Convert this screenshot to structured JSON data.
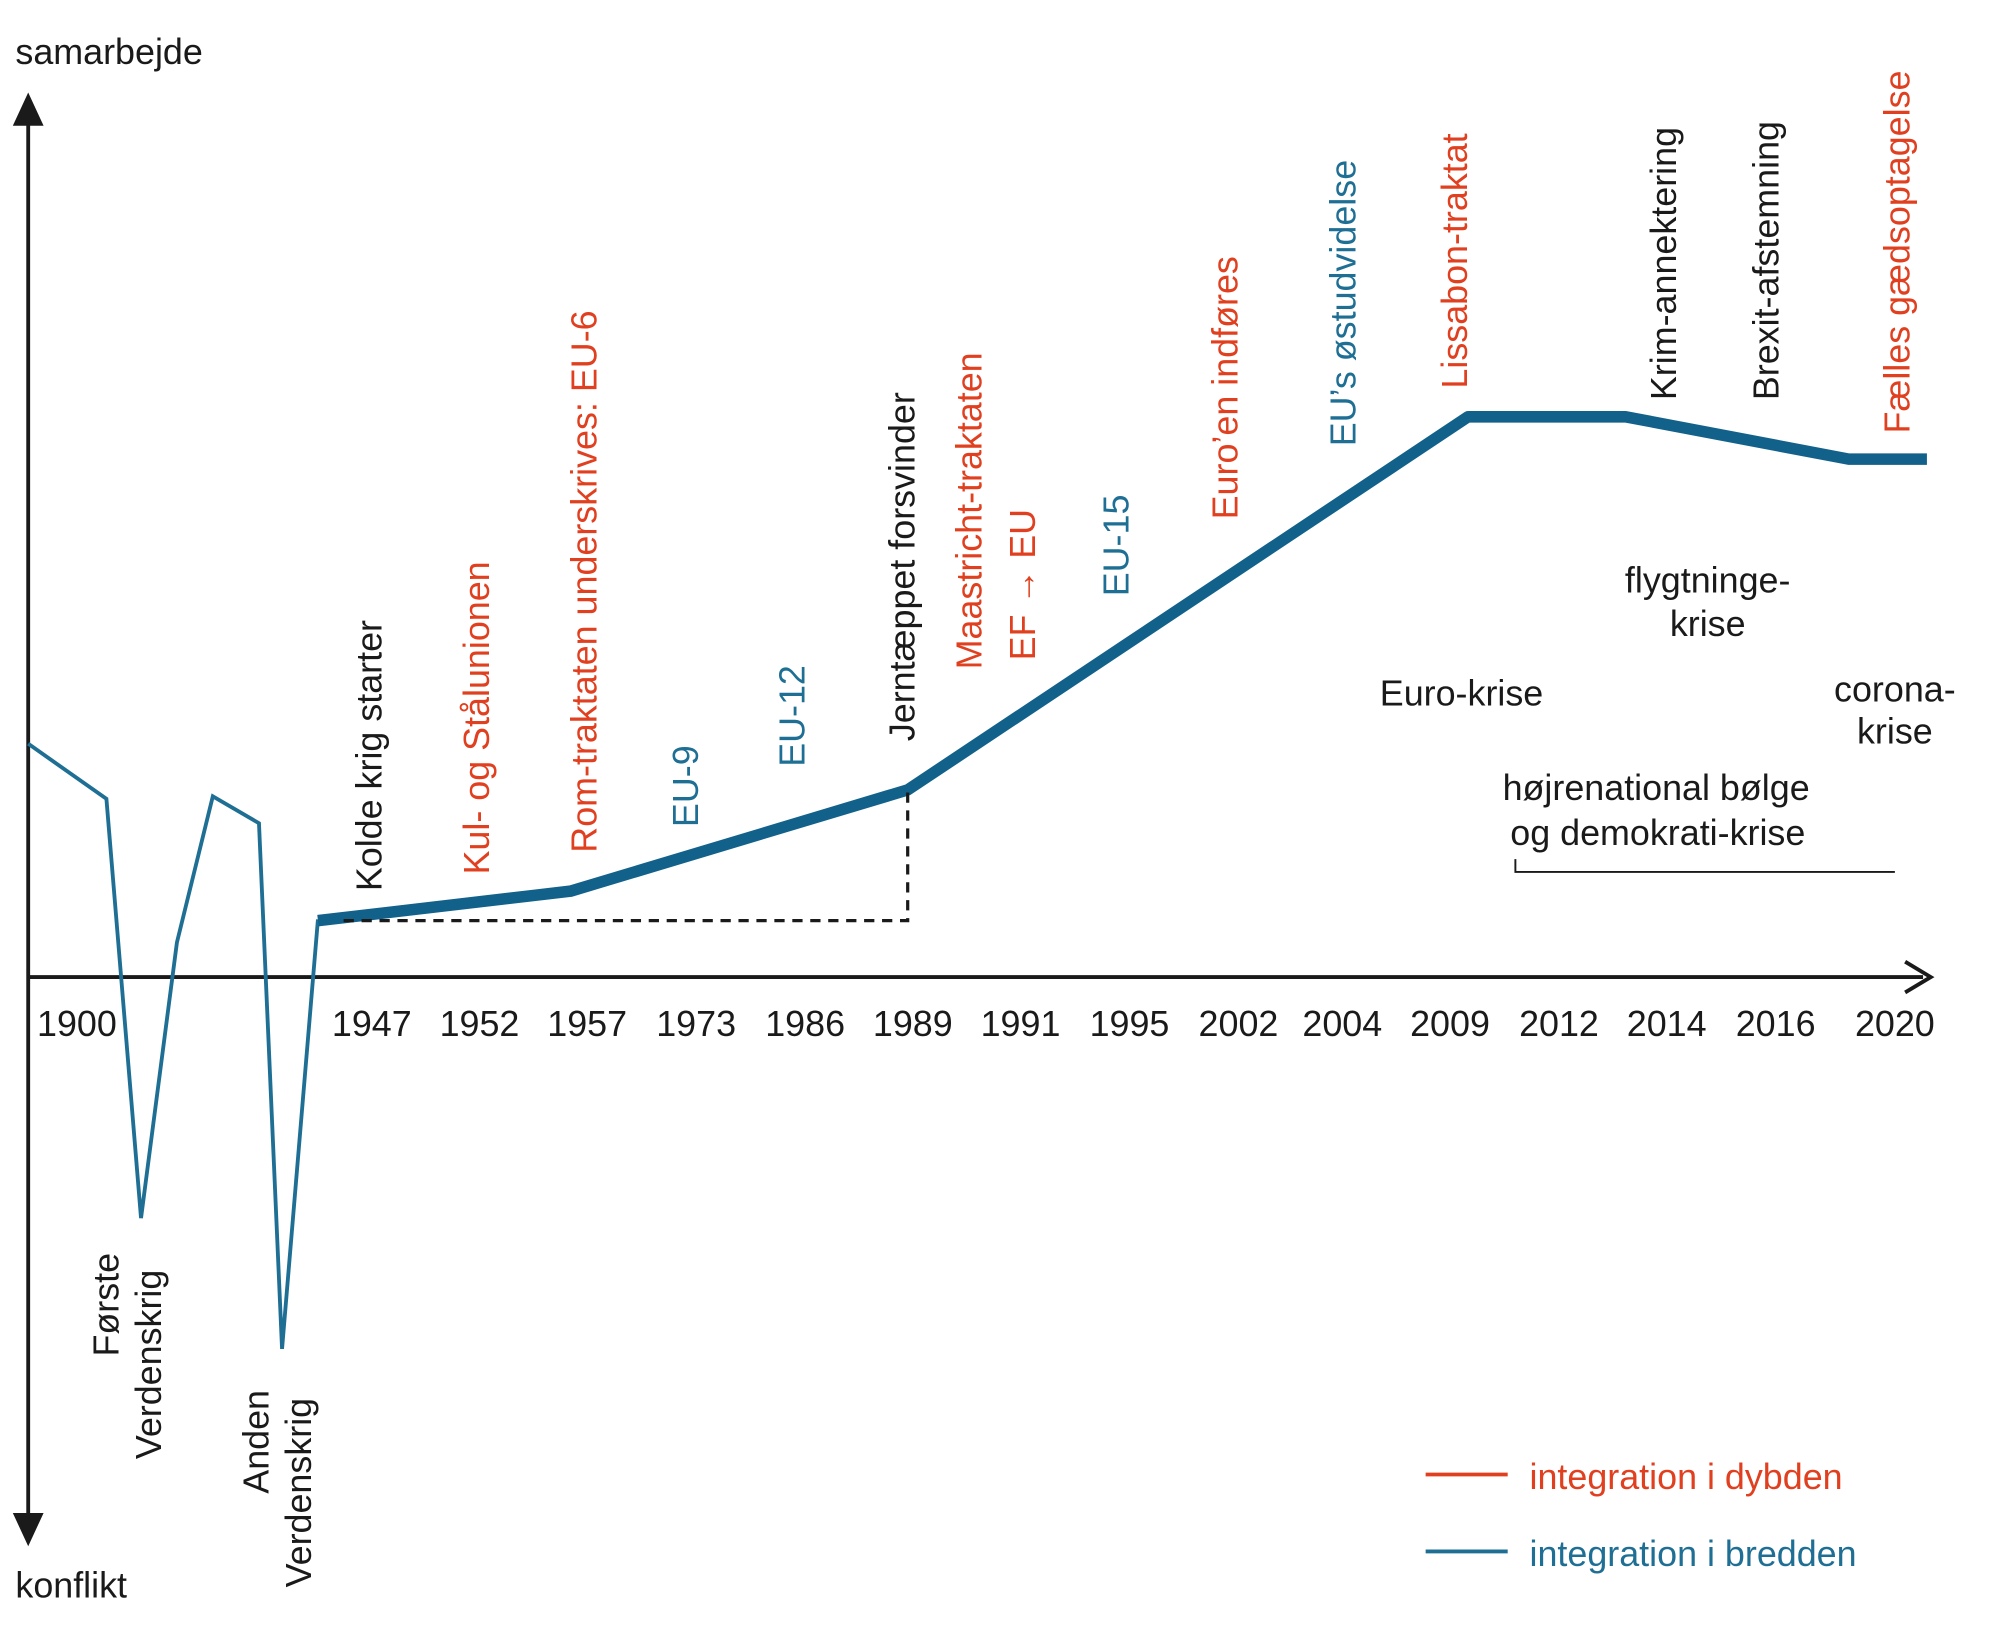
{
  "axis": {
    "top_label": "samarbejde",
    "bottom_label": "konflikt"
  },
  "years": [
    "1900",
    "1947",
    "1952",
    "1957",
    "1973",
    "1986",
    "1989",
    "1991",
    "1995",
    "2002",
    "2004",
    "2009",
    "2012",
    "2014",
    "2016",
    "2020"
  ],
  "wars": [
    {
      "lines": [
        "Første",
        "Verdenskrig"
      ]
    },
    {
      "lines": [
        "Anden",
        "Verdenskrig"
      ]
    }
  ],
  "events": [
    "Kolde krig starter",
    "Kul- og Stålunionen",
    "Rom-traktaten underskrives: EU-6",
    "EU-9",
    "EU-12",
    "Jerntæppet forsvinder",
    "Maastricht-traktaten",
    "EF → EU",
    "EU-15",
    "Euro’en indføres",
    "EU’s østudvidelse",
    "Lissabon-traktat",
    "Krim-annektering",
    "Brexit-afstemning",
    "Fælles gædsoptagelse"
  ],
  "crises": [
    {
      "lines": [
        "Euro-krise"
      ]
    },
    {
      "lines": [
        "flygtninge-",
        "krise"
      ]
    },
    {
      "lines": [
        "corona-",
        "krise"
      ]
    },
    {
      "lines": [
        "højrenational bølge",
        "og demokrati-krise"
      ]
    }
  ],
  "legend": [
    "integration i dybden",
    "integration i bredden"
  ]
}
